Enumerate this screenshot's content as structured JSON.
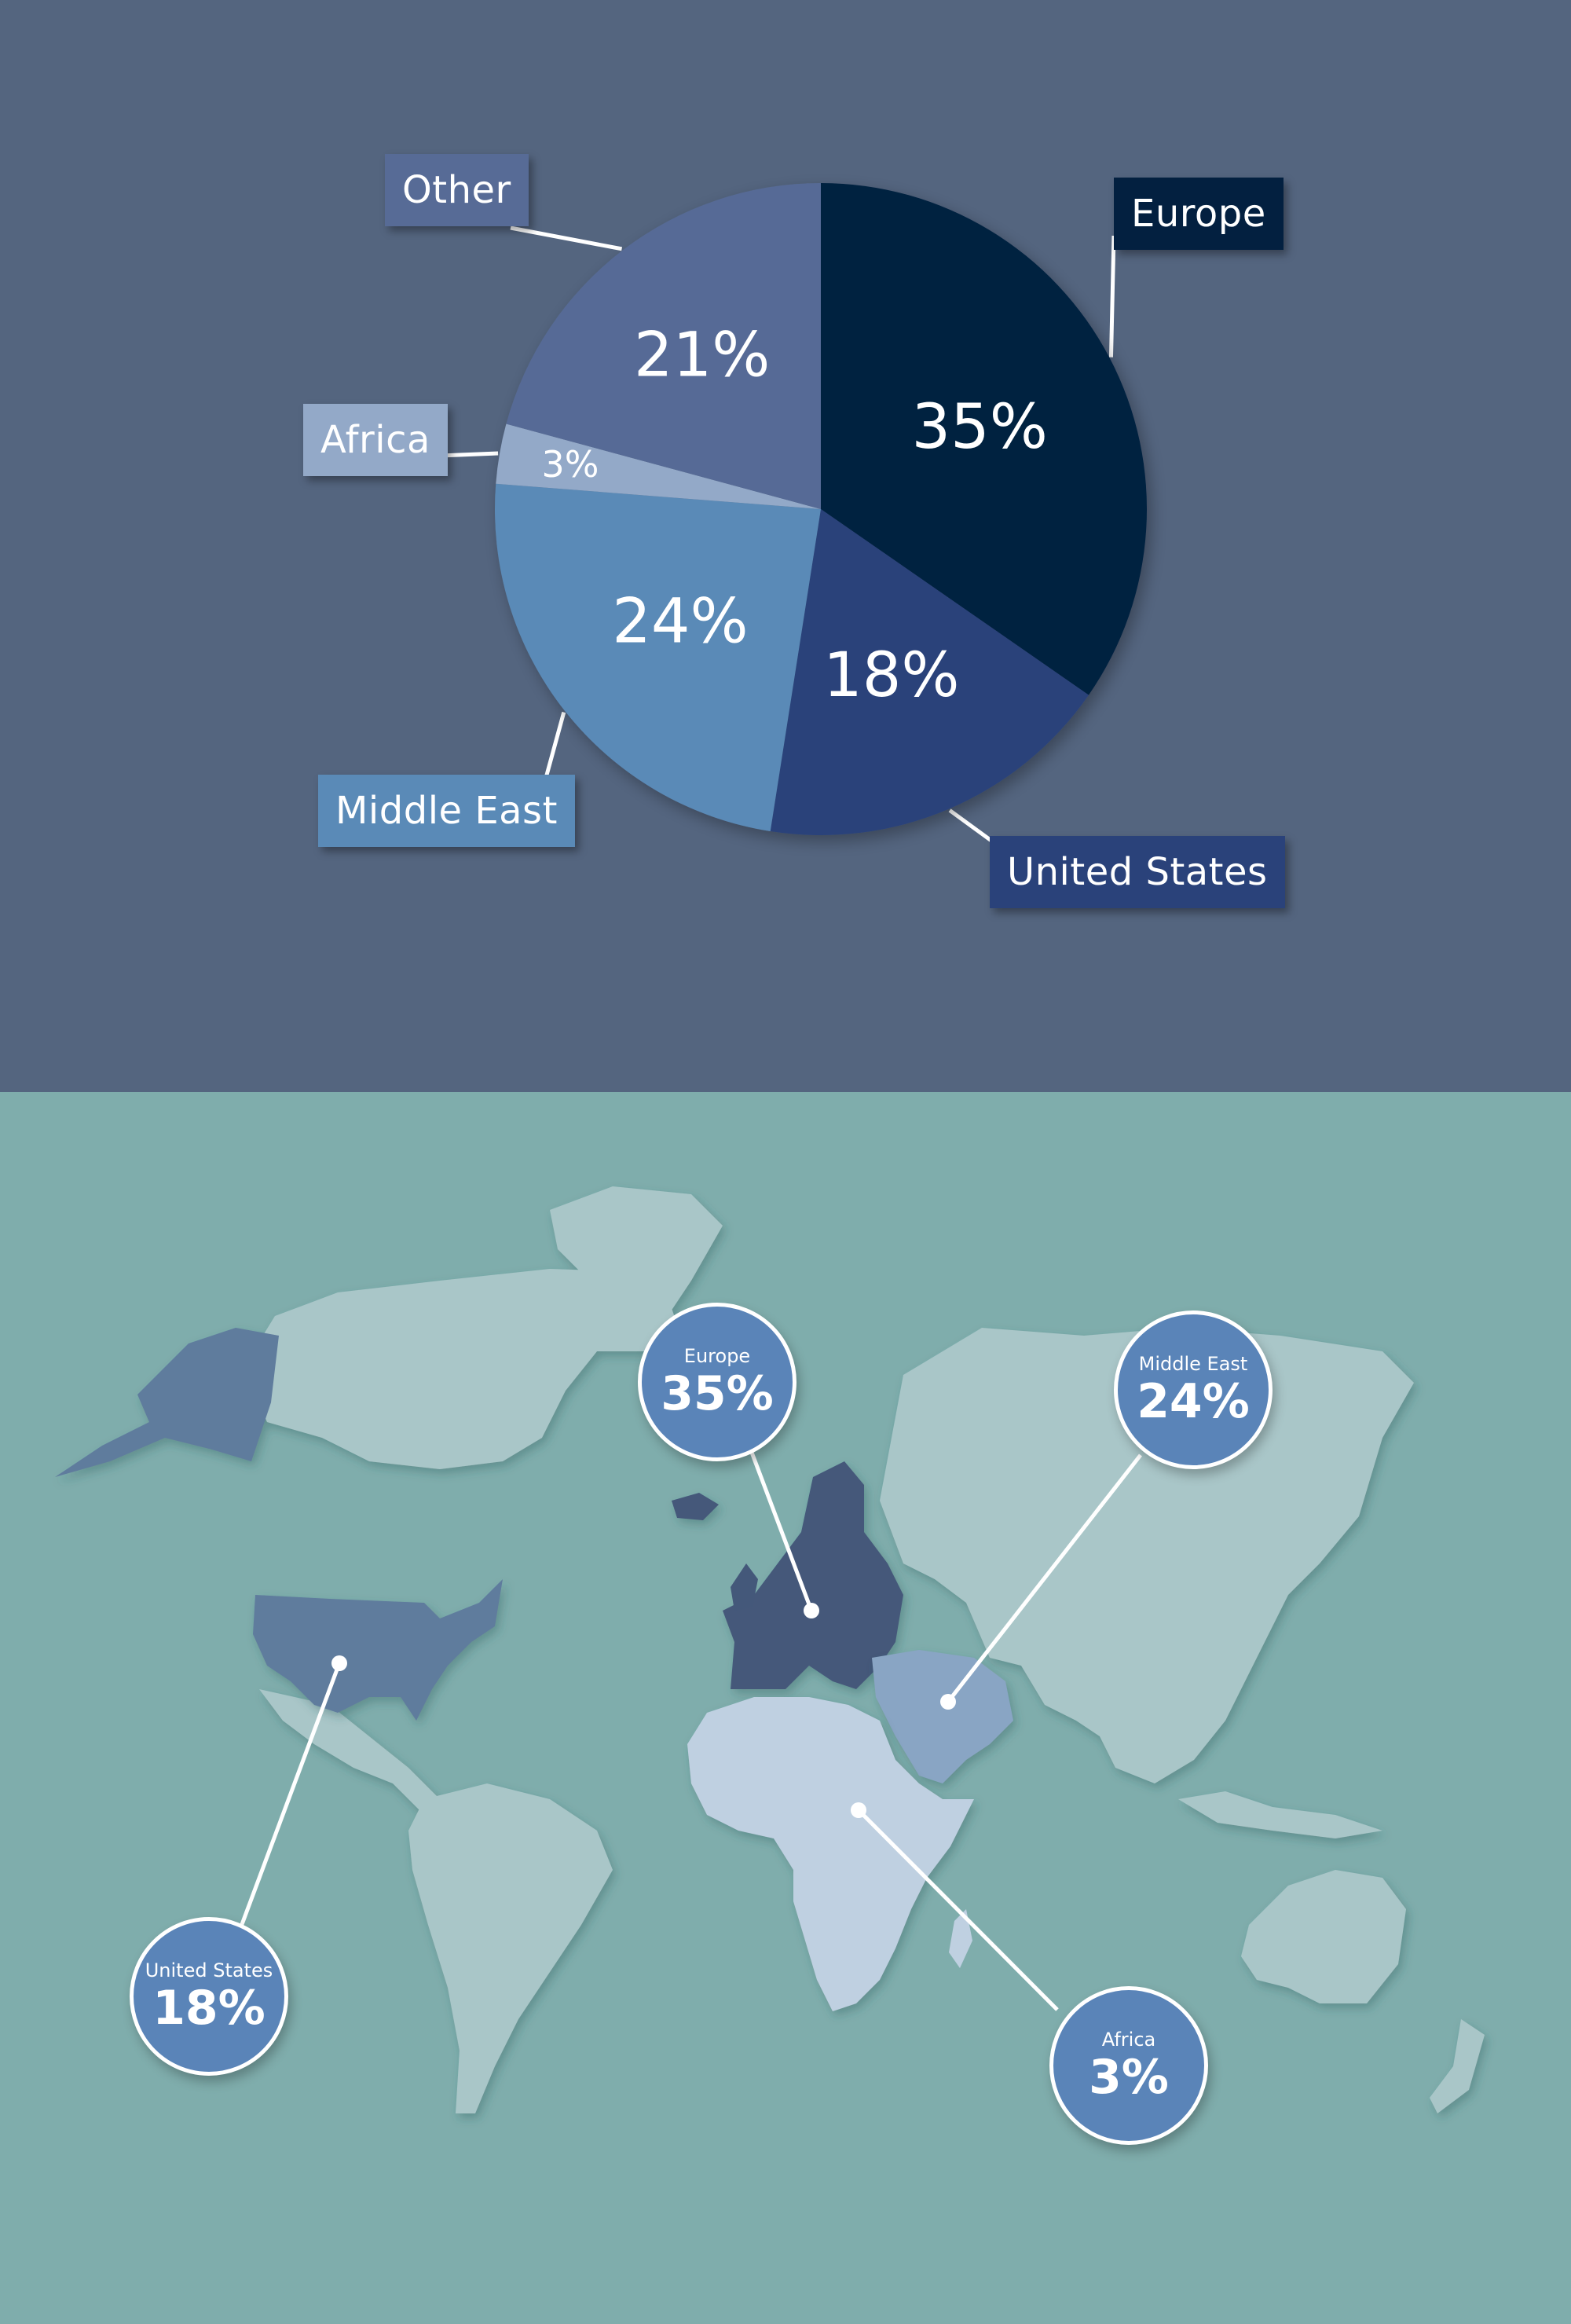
{
  "chart_data": [
    {
      "type": "pie",
      "categories": [
        "Europe",
        "United States",
        "Middle East",
        "Africa",
        "Other"
      ],
      "values": [
        35,
        18,
        24,
        3,
        21
      ],
      "value_labels": [
        "35%",
        "18%",
        "24%",
        "3%",
        "21%"
      ],
      "colors": [
        "#032040",
        "#2a427a",
        "#5a8ab7",
        "#93a9c8",
        "#576b96"
      ],
      "label_box_colors": [
        "#032040",
        "#2a427a",
        "#5a8ab7",
        "#93a9c8",
        "#576b96"
      ],
      "legend": "outside-labels"
    },
    {
      "type": "map",
      "regions": [
        {
          "name": "Europe",
          "value_label": "35%",
          "color": "#44587a"
        },
        {
          "name": "Middle East",
          "value_label": "24%",
          "color": "#89a5c4"
        },
        {
          "name": "United States",
          "value_label": "18%",
          "color": "#5f7b9d"
        },
        {
          "name": "Africa",
          "value_label": "3%",
          "color": "#bfd0e1"
        }
      ]
    }
  ],
  "colors": {
    "top_background": "#54657f",
    "bottom_background": "#7fadac",
    "land": "#a9c6c8",
    "bubble": "#5a84b8"
  }
}
